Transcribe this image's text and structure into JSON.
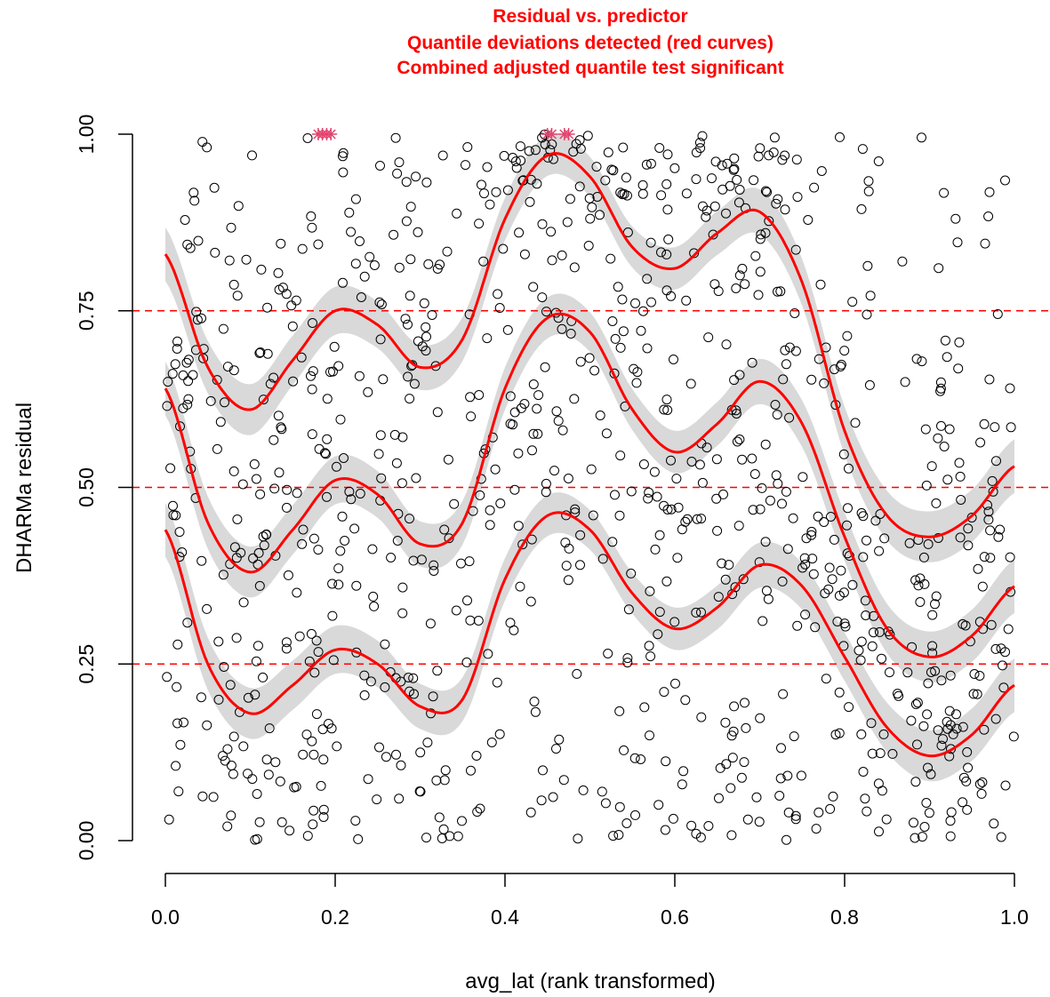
{
  "chart_data": {
    "type": "scatter",
    "title_lines": [
      "Residual vs. predictor",
      "Quantile deviations detected (red curves)",
      "Combined adjusted quantile test significant"
    ],
    "xlabel": "avg_lat (rank transformed)",
    "ylabel": "DHARMa residual",
    "xlim": [
      0,
      1
    ],
    "ylim": [
      0,
      1
    ],
    "xticks": [
      "0.0",
      "0.2",
      "0.4",
      "0.6",
      "0.8",
      "1.0"
    ],
    "xtick_values": [
      0,
      0.2,
      0.4,
      0.6,
      0.8,
      1.0
    ],
    "yticks": [
      "0.00",
      "0.25",
      "0.50",
      "0.75",
      "1.00"
    ],
    "ytick_values": [
      0,
      0.25,
      0.5,
      0.75,
      1.0
    ],
    "reference_lines": [
      0.25,
      0.5,
      0.75
    ],
    "quantile_curves": [
      {
        "quantile": 0.75,
        "x": [
          0.0,
          0.05,
          0.1,
          0.15,
          0.2,
          0.25,
          0.3,
          0.35,
          0.4,
          0.45,
          0.5,
          0.55,
          0.6,
          0.65,
          0.7,
          0.75,
          0.8,
          0.85,
          0.9,
          0.95,
          1.0
        ],
        "y": [
          0.83,
          0.67,
          0.61,
          0.68,
          0.75,
          0.73,
          0.67,
          0.71,
          0.88,
          0.97,
          0.94,
          0.84,
          0.81,
          0.86,
          0.89,
          0.79,
          0.58,
          0.46,
          0.43,
          0.46,
          0.53
        ]
      },
      {
        "quantile": 0.5,
        "x": [
          0.0,
          0.05,
          0.1,
          0.15,
          0.2,
          0.25,
          0.3,
          0.35,
          0.4,
          0.45,
          0.5,
          0.55,
          0.6,
          0.65,
          0.7,
          0.75,
          0.8,
          0.85,
          0.9,
          0.95,
          1.0
        ],
        "y": [
          0.64,
          0.45,
          0.38,
          0.44,
          0.51,
          0.49,
          0.42,
          0.45,
          0.64,
          0.74,
          0.72,
          0.61,
          0.55,
          0.59,
          0.65,
          0.59,
          0.43,
          0.3,
          0.26,
          0.29,
          0.36
        ]
      },
      {
        "quantile": 0.25,
        "x": [
          0.0,
          0.05,
          0.1,
          0.15,
          0.2,
          0.25,
          0.3,
          0.35,
          0.4,
          0.45,
          0.5,
          0.55,
          0.6,
          0.65,
          0.7,
          0.75,
          0.8,
          0.85,
          0.9,
          0.95,
          1.0
        ],
        "y": [
          0.44,
          0.25,
          0.18,
          0.22,
          0.27,
          0.25,
          0.19,
          0.2,
          0.37,
          0.46,
          0.44,
          0.35,
          0.3,
          0.33,
          0.39,
          0.36,
          0.26,
          0.16,
          0.12,
          0.15,
          0.22
        ]
      }
    ],
    "outlier_markers_at_top": [
      0.18,
      0.185,
      0.19,
      0.195,
      0.45,
      0.455,
      0.47,
      0.475
    ],
    "scatter_point_count": 1000,
    "colors": {
      "points": "#000000",
      "curves": "#ff0000",
      "reference_lines": "#ff0000",
      "confidence_band": "#d9d9d9",
      "outlier_markers": "#e2436e"
    }
  }
}
